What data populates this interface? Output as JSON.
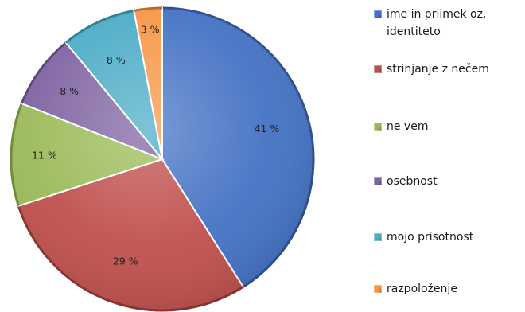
{
  "chart_data": {
    "type": "pie",
    "slices": [
      {
        "label": "ime in priimek oz. identiteto",
        "value": 41,
        "display": "41 %",
        "color": "#4472c4",
        "dark": "#2d4f8f"
      },
      {
        "label": "strinjanje z nečem",
        "value": 29,
        "display": "29 %",
        "color": "#c0504d",
        "dark": "#8a3533"
      },
      {
        "label": "ne vem",
        "value": 11,
        "display": "11 %",
        "color": "#9bbb59",
        "dark": "#6e8a3c"
      },
      {
        "label": "osebnost",
        "value": 8,
        "display": "8 %",
        "color": "#8064a2",
        "dark": "#5a4477"
      },
      {
        "label": "mojo prisotnost",
        "value": 8,
        "display": "8 %",
        "color": "#4bacc6",
        "dark": "#2f7d92"
      },
      {
        "label": "razpoloženje",
        "value": 3,
        "display": "3 %",
        "color": "#f79646",
        "dark": "#b86a2b"
      }
    ],
    "start": "top",
    "direction": "clockwise",
    "legend_position": "right"
  }
}
